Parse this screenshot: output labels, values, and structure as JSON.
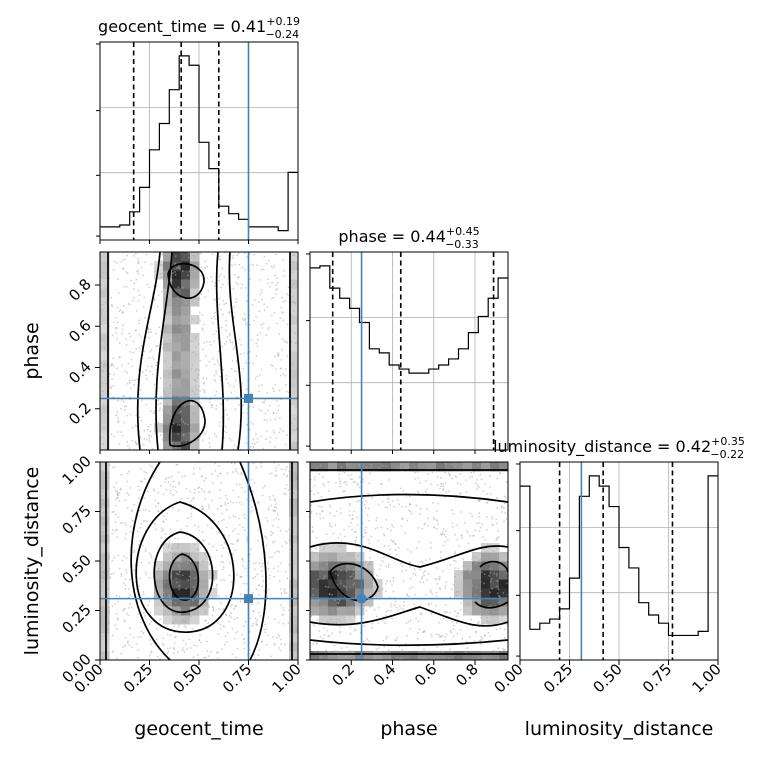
{
  "chart_data": {
    "type": "corner",
    "parameters": [
      {
        "name": "geocent_time",
        "range": [
          0.0,
          1.0
        ],
        "ticks": [
          0.0,
          0.25,
          0.5,
          0.75,
          1.0
        ],
        "tick_labels": [
          "0.00",
          "0.25",
          "0.50",
          "0.75",
          "1.00"
        ],
        "truth": 0.75,
        "quantiles": [
          0.17,
          0.41,
          0.6
        ],
        "title": {
          "prefix": "geocent_time = 0.41",
          "plus": "+0.19",
          "minus": "−0.24"
        },
        "hist_bins": 20,
        "hist_values": [
          0.07,
          0.07,
          0.08,
          0.15,
          0.28,
          0.48,
          0.62,
          0.8,
          0.98,
          0.93,
          0.52,
          0.38,
          0.18,
          0.14,
          0.11,
          0.07,
          0.07,
          0.07,
          0.05,
          0.36
        ]
      },
      {
        "name": "phase",
        "range": [
          0.0,
          0.96
        ],
        "ticks": [
          0.2,
          0.4,
          0.6,
          0.8
        ],
        "tick_labels": [
          "0.2",
          "0.4",
          "0.6",
          "0.8"
        ],
        "truth": 0.25,
        "quantiles": [
          0.11,
          0.44,
          0.89
        ],
        "title": {
          "prefix": "phase = 0.44",
          "plus": "+0.45",
          "minus": "−0.33"
        },
        "hist_bins": 20,
        "hist_values": [
          0.9,
          0.91,
          0.8,
          0.75,
          0.7,
          0.63,
          0.5,
          0.48,
          0.42,
          0.4,
          0.38,
          0.38,
          0.4,
          0.42,
          0.45,
          0.5,
          0.58,
          0.66,
          0.75,
          0.85
        ]
      },
      {
        "name": "luminosity_distance",
        "range": [
          0.0,
          1.0
        ],
        "ticks": [
          0.0,
          0.25,
          0.5,
          0.75,
          1.0
        ],
        "tick_labels": [
          "0.00",
          "0.25",
          "0.50",
          "0.75",
          "1.00"
        ],
        "truth": 0.31,
        "quantiles": [
          0.2,
          0.42,
          0.77
        ],
        "title": {
          "prefix": "luminosity_distance = 0.42",
          "plus": "+0.35",
          "minus": "−0.22"
        },
        "hist_bins": 20,
        "hist_values": [
          0.85,
          0.15,
          0.18,
          0.2,
          0.25,
          0.4,
          0.8,
          0.9,
          0.85,
          0.75,
          0.55,
          0.45,
          0.28,
          0.22,
          0.18,
          0.12,
          0.12,
          0.12,
          0.14,
          0.9
        ]
      }
    ],
    "truth_color": "#4682b4",
    "grid": true
  }
}
